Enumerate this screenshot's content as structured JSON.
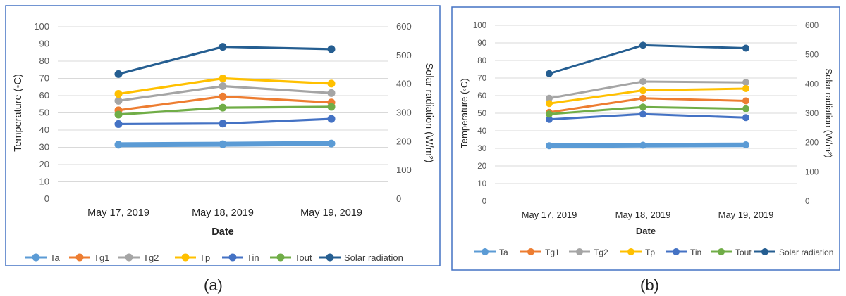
{
  "series_colors": {
    "Ta": "#5B9BD5",
    "Tg1": "#ED7D31",
    "Tg2": "#A5A5A5",
    "Tp": "#FFC000",
    "Tin": "#4472C4",
    "Tout": "#70AD47",
    "Solar radiation": "#255E91"
  },
  "chart_data": [
    {
      "panel_label": "(a)",
      "type": "line",
      "categories": [
        "May 17, 2019",
        "May 18, 2019",
        "May 19, 2019"
      ],
      "xlabel": "Date",
      "ylabel": "Temperature (◦C)",
      "y2label": "Solar radiation (W/m²)",
      "ylim": [
        0,
        100
      ],
      "y2lim": [
        0,
        600
      ],
      "yticks": [
        "0",
        "10",
        "20",
        "30",
        "40",
        "50",
        "60",
        "70",
        "80",
        "90",
        "100"
      ],
      "y2ticks": [
        "0",
        "100",
        "200",
        "300",
        "400",
        "500",
        "600"
      ],
      "grid": true,
      "legend_position": "bottom",
      "series": [
        {
          "name": "Ta",
          "values": [
            31.5,
            31.8,
            32.2
          ],
          "axis": "left"
        },
        {
          "name": "Tg1",
          "values": [
            51.5,
            59.5,
            56.0
          ],
          "axis": "left"
        },
        {
          "name": "Tg2",
          "values": [
            57.0,
            65.5,
            61.5
          ],
          "axis": "left"
        },
        {
          "name": "Tp",
          "values": [
            61.0,
            70.0,
            67.0
          ],
          "axis": "left"
        },
        {
          "name": "Tin",
          "values": [
            43.5,
            43.8,
            46.5
          ],
          "axis": "left"
        },
        {
          "name": "Tout",
          "values": [
            49.0,
            53.0,
            53.5
          ],
          "axis": "left"
        },
        {
          "name": "Solar radiation",
          "values": [
            435,
            530,
            522
          ],
          "axis": "right"
        }
      ]
    },
    {
      "panel_label": "(b)",
      "type": "line",
      "categories": [
        "May 17, 2019",
        "May 18, 2019",
        "May 19, 2019"
      ],
      "xlabel": "Date",
      "ylabel": "Temperature (◦C)",
      "y2label": "Solar radiation (W/m²)",
      "ylim": [
        0,
        100
      ],
      "y2lim": [
        0,
        600
      ],
      "yticks": [
        "0",
        "10",
        "20",
        "30",
        "40",
        "50",
        "60",
        "70",
        "80",
        "90",
        "100"
      ],
      "y2ticks": [
        "0",
        "100",
        "200",
        "300",
        "400",
        "500",
        "600"
      ],
      "grid": true,
      "legend_position": "bottom",
      "series": [
        {
          "name": "Ta",
          "values": [
            31.5,
            31.8,
            32.0
          ],
          "axis": "left"
        },
        {
          "name": "Tg1",
          "values": [
            50.5,
            58.5,
            57.0
          ],
          "axis": "left"
        },
        {
          "name": "Tg2",
          "values": [
            58.5,
            68.0,
            67.5
          ],
          "axis": "left"
        },
        {
          "name": "Tp",
          "values": [
            55.5,
            63.0,
            64.0
          ],
          "axis": "left"
        },
        {
          "name": "Tin",
          "values": [
            46.5,
            49.5,
            47.5
          ],
          "axis": "left"
        },
        {
          "name": "Tout",
          "values": [
            49.5,
            53.5,
            52.5
          ],
          "axis": "left"
        },
        {
          "name": "Solar radiation",
          "values": [
            435,
            532,
            522
          ],
          "axis": "right"
        }
      ]
    }
  ]
}
